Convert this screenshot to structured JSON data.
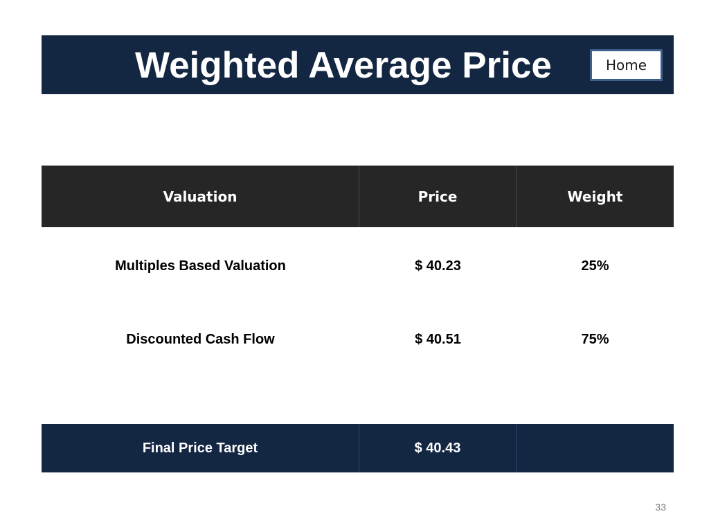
{
  "slide": {
    "title": "Weighted Average Price",
    "home_label": "Home",
    "page_number": "33"
  },
  "table": {
    "headers": [
      "Valuation",
      "Price",
      "Weight"
    ],
    "rows": [
      {
        "valuation": "Multiples Based Valuation",
        "price": "$ 40.23",
        "weight": "25%"
      },
      {
        "valuation": "Discounted Cash Flow",
        "price": "$ 40.51",
        "weight": "75%"
      }
    ],
    "final": {
      "label": "Final Price Target",
      "price": "$ 40.43",
      "weight": ""
    }
  },
  "colors": {
    "title_bar": "#132642",
    "header_row": "#262626",
    "final_row": "#132642",
    "home_border": "#3e5f8c"
  }
}
